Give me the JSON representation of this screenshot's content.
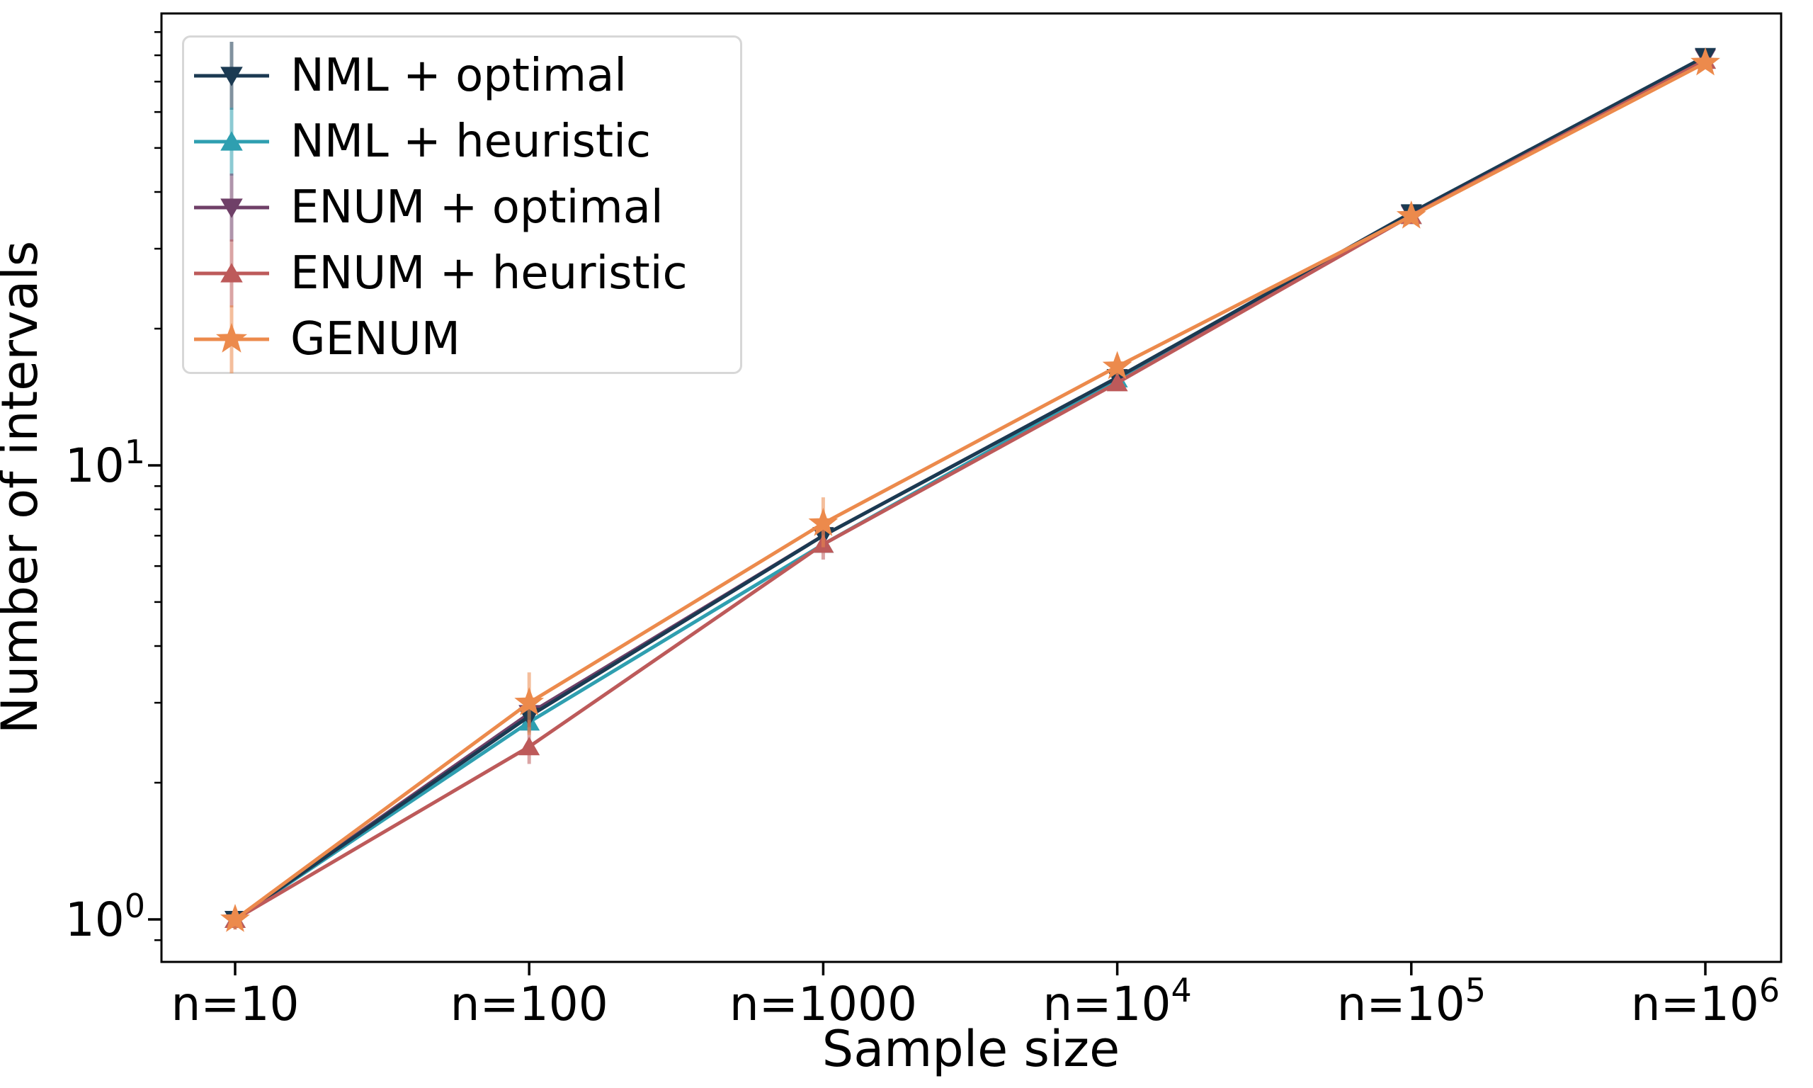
{
  "figure": {
    "xlabel": "Sample size",
    "ylabel": "Number of intervals",
    "background_color": "#ffffff",
    "text_color": "#000000",
    "spine_color": "#000000",
    "legend_border_color": "#d7d7d7"
  },
  "chart_data": {
    "type": "line",
    "title": "",
    "xlabel": "Sample size",
    "ylabel": "Number of intervals",
    "x_scale": "log-category",
    "y_scale": "log",
    "x_values": [
      10,
      100,
      1000,
      10000,
      100000,
      1000000
    ],
    "x_tick_labels": [
      {
        "label": "n=10",
        "sup": ""
      },
      {
        "label": "n=100",
        "sup": ""
      },
      {
        "label": "n=1000",
        "sup": ""
      },
      {
        "label": "n=10",
        "sup": "4"
      },
      {
        "label": "n=10",
        "sup": "5"
      },
      {
        "label": "n=10",
        "sup": "6"
      }
    ],
    "y_ticks": [
      {
        "label": "10",
        "sup": "0",
        "value": 1
      },
      {
        "label": "10",
        "sup": "1",
        "value": 10
      }
    ],
    "ylim": [
      0.806,
      98.9
    ],
    "grid": false,
    "legend_position": "upper left",
    "series": [
      {
        "name": "NML + optimal",
        "color": "#1b3a52",
        "marker": "triangle-down",
        "values": [
          1.0,
          2.8,
          7.0,
          15.6,
          36.0,
          79.5
        ],
        "err_lo": [
          1.0,
          2.65,
          6.8,
          15.2,
          35.2,
          78.5
        ],
        "err_hi": [
          1.0,
          2.95,
          7.25,
          16.0,
          36.8,
          80.5
        ]
      },
      {
        "name": "NML + heuristic",
        "color": "#2f9fb0",
        "marker": "triangle-up",
        "values": [
          1.0,
          2.72,
          6.7,
          15.5,
          35.5,
          78.0
        ],
        "err_lo": [
          1.0,
          2.58,
          6.5,
          15.1,
          34.8,
          77.2
        ],
        "err_hi": [
          1.0,
          2.9,
          6.95,
          15.9,
          36.2,
          79.0
        ]
      },
      {
        "name": "ENUM + optimal",
        "color": "#6f4068",
        "marker": "triangle-down",
        "values": [
          1.0,
          2.84,
          7.0,
          15.6,
          35.8,
          79.0
        ],
        "err_lo": [
          1.0,
          2.65,
          6.8,
          15.2,
          35.0,
          78.2
        ],
        "err_hi": [
          1.0,
          3.0,
          7.2,
          16.0,
          36.5,
          79.8
        ]
      },
      {
        "name": "ENUM + heuristic",
        "color": "#bd5a5a",
        "marker": "triangle-up",
        "values": [
          1.0,
          2.4,
          6.7,
          15.2,
          35.5,
          78.0
        ],
        "err_lo": [
          0.95,
          2.2,
          6.2,
          14.7,
          34.7,
          77.2
        ],
        "err_hi": [
          1.05,
          2.75,
          7.3,
          15.7,
          36.2,
          78.8
        ]
      },
      {
        "name": "GENUM",
        "color": "#ec8a4c",
        "marker": "star",
        "values": [
          1.0,
          3.0,
          7.45,
          16.5,
          35.4,
          77.0
        ],
        "err_lo": [
          0.95,
          2.55,
          6.6,
          15.8,
          34.6,
          76.2
        ],
        "err_hi": [
          1.05,
          3.5,
          8.5,
          17.3,
          36.2,
          77.8
        ]
      }
    ]
  }
}
